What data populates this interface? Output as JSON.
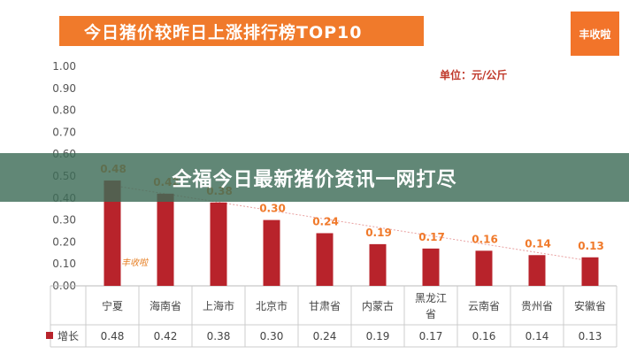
{
  "header": {
    "title": "今日猪价较昨日上涨排行榜TOP10"
  },
  "logo": {
    "text": "丰收啦"
  },
  "unit_note": "单位：元/公斤",
  "banner": {
    "text": "全福今日最新猪价资讯一网打尽"
  },
  "watermark": "丰收啦",
  "colors": {
    "bar": "#b8232b",
    "accent": "#f07a2b",
    "banner": "#3e6c58",
    "trend": "#e8a0a0"
  },
  "chart_data": {
    "type": "bar",
    "categories": [
      "宁夏",
      "海南省",
      "上海市",
      "北京市",
      "甘肃省",
      "内蒙古",
      "黑龙江省",
      "云南省",
      "贵州省",
      "安徽省"
    ],
    "series": [
      {
        "name": "增长",
        "values": [
          0.48,
          0.42,
          0.38,
          0.3,
          0.24,
          0.19,
          0.17,
          0.16,
          0.14,
          0.13
        ]
      }
    ],
    "data_labels": [
      "0.48",
      "0.42",
      "0.38",
      "0.30",
      "0.24",
      "0.19",
      "0.17",
      "0.16",
      "0.14",
      "0.13"
    ],
    "table_values": [
      "0.48",
      "0.42",
      "0.38",
      "0.30",
      "0.24",
      "0.19",
      "0.17",
      "0.16",
      "0.14",
      "0.13"
    ],
    "y_ticks": [
      "0.00",
      "0.10",
      "0.20",
      "0.30",
      "0.40",
      "0.50",
      "0.60",
      "0.70",
      "0.80",
      "0.90",
      "1.00"
    ],
    "ylim": [
      0,
      1.0
    ],
    "trendline": true,
    "legend": "bottom-left table"
  }
}
